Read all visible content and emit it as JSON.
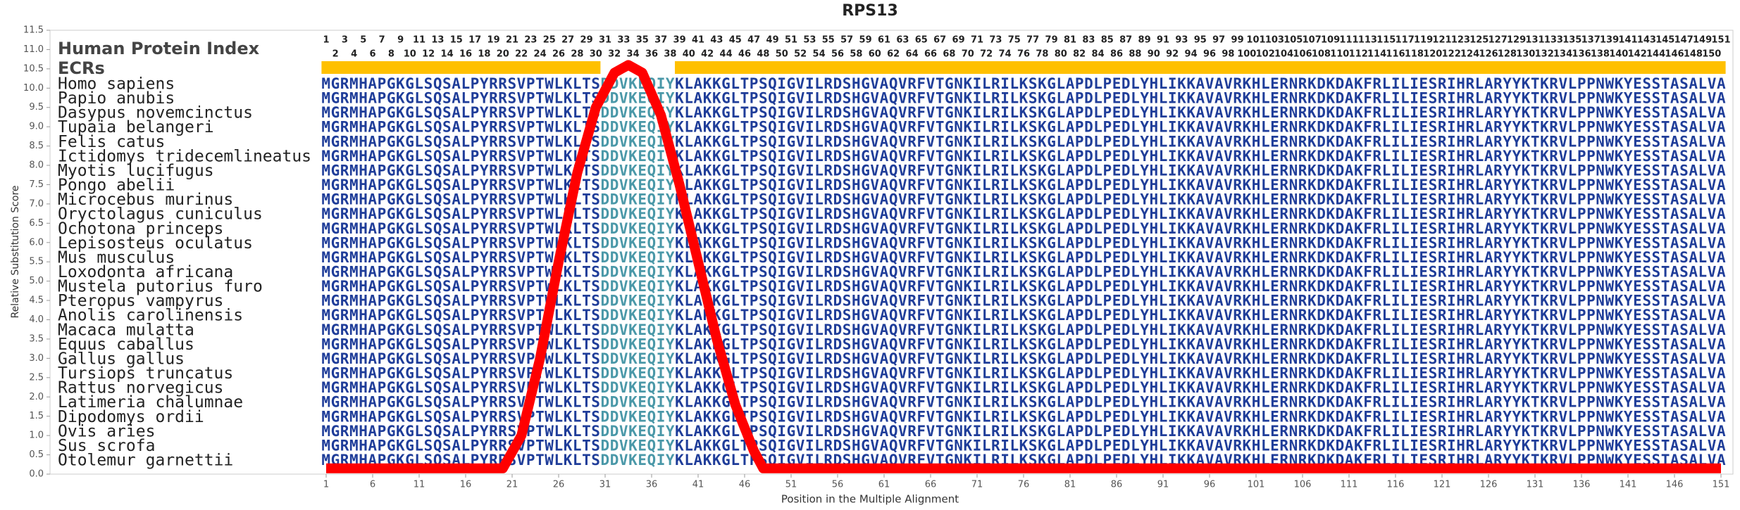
{
  "chart_data": {
    "type": "line",
    "title": "RPS13",
    "x_label": "Position in the Multiple Alignment",
    "y_label": "Relative Substitution Score",
    "color": "#ff0000",
    "x": [
      1,
      20,
      22,
      24,
      26,
      28,
      30,
      32,
      33.5,
      35,
      37,
      39,
      41,
      43,
      45,
      47,
      48,
      151
    ],
    "values": [
      0.15,
      0.15,
      1,
      3,
      5.5,
      7.8,
      9.5,
      10.4,
      10.6,
      10.4,
      9.3,
      7.5,
      5.5,
      3.5,
      1.8,
      0.6,
      0.15,
      0.15
    ],
    "xlim": [
      1,
      151
    ],
    "xticks": [
      1,
      6,
      11,
      16,
      21,
      26,
      31,
      36,
      41,
      46,
      51,
      56,
      61,
      66,
      71,
      76,
      81,
      86,
      91,
      96,
      101,
      106,
      111,
      116,
      121,
      126,
      131,
      136,
      141,
      146,
      151
    ],
    "ylim": [
      0,
      11.5
    ],
    "yticks": [
      {
        "value": 0,
        "label": "0.0"
      },
      {
        "value": 0.5,
        "label": "0.5"
      },
      {
        "value": 1,
        "label": "1.0"
      },
      {
        "value": 1.5,
        "label": "1.5"
      },
      {
        "value": 2,
        "label": "2.0"
      },
      {
        "value": 2.5,
        "label": "2.5"
      },
      {
        "value": 3,
        "label": "3.0"
      },
      {
        "value": 3.5,
        "label": "3.5"
      },
      {
        "value": 4,
        "label": "4.0"
      },
      {
        "value": 4.5,
        "label": "4.5"
      },
      {
        "value": 5,
        "label": "5.0"
      },
      {
        "value": 5.5,
        "label": "5.5"
      },
      {
        "value": 6,
        "label": "6.0"
      },
      {
        "value": 6.5,
        "label": "6.5"
      },
      {
        "value": 7,
        "label": "7.0"
      },
      {
        "value": 7.5,
        "label": "7.5"
      },
      {
        "value": 8,
        "label": "8.0"
      },
      {
        "value": 8.5,
        "label": "8.5"
      },
      {
        "value": 9,
        "label": "9.0"
      },
      {
        "value": 9.5,
        "label": "9.5"
      },
      {
        "value": 10,
        "label": "10.0"
      },
      {
        "value": 10.5,
        "label": "10.5"
      },
      {
        "value": 11,
        "label": "11.0"
      },
      {
        "value": 11.5,
        "label": "11.5"
      }
    ]
  },
  "alignment": {
    "index_label": "Human Protein Index",
    "ecr_label": "ECRs",
    "ecr_color": "#ffc000",
    "ecr_residue_color": "#1f3d99",
    "other_residue_color": "#4a98a8",
    "index": [
      1,
      2,
      3,
      4,
      5,
      6,
      7,
      8,
      9,
      10,
      11,
      12,
      13,
      14,
      15,
      16,
      17,
      18,
      19,
      20,
      21,
      22,
      23,
      24,
      25,
      26,
      27,
      28,
      29,
      30,
      31,
      32,
      33,
      34,
      35,
      36,
      37,
      38,
      39,
      40,
      41,
      42,
      43,
      44,
      45,
      46,
      47,
      48,
      49,
      50,
      51,
      52,
      53,
      54,
      55,
      56,
      57,
      58,
      59,
      60,
      61,
      62,
      63,
      64,
      65,
      66,
      67,
      68,
      69,
      70,
      71,
      72,
      73,
      74,
      75,
      76,
      77,
      78,
      79,
      80,
      81,
      82,
      83,
      84,
      85,
      86,
      87,
      88,
      89,
      90,
      91,
      92,
      93,
      94,
      95,
      96,
      97,
      98,
      99,
      100,
      101,
      102,
      103,
      104,
      105,
      106,
      107,
      108,
      109,
      110,
      111,
      112,
      113,
      114,
      115,
      116,
      117,
      118,
      119,
      120,
      121,
      122,
      123,
      124,
      125,
      126,
      127,
      128,
      129,
      130,
      131,
      132,
      133,
      134,
      135,
      136,
      137,
      138,
      139,
      140,
      141,
      142,
      143,
      144,
      145,
      146,
      147,
      148,
      149,
      150,
      151
    ],
    "ecrs": [
      [
        1,
        30
      ],
      [
        39,
        151
      ]
    ],
    "rows": [
      {
        "species": "Homo sapiens",
        "sequence": "MGRMHAPGKGLSQSALPYRRSVPTWLKLTSDDVKEQIYKLAKKGLTPSQIGVILRDSHGVAQVRFVTGNKILRILKSKGLAPDLPEDLYHLIKKAVAVRKHLERNRKDKDAKFRLILIESRIHRLARYYKTKRVLPPNWKYESSTASALVA"
      },
      {
        "species": "Papio anubis",
        "sequence": "MGRMHAPGKGLSQSALPYRRSVPTWLKLTSDDVKEQIYKLAKKGLTPSQIGVILRDSHGVAQVRFVTGNKILRILKSKGLAPDLPEDLYHLIKKAVAVRKHLERNRKDKDAKFRLILIESRIHRLARYYKTKRVLPPNWKYESSTASALVA"
      },
      {
        "species": "Dasypus novemcinctus",
        "sequence": "MGRMHAPGKGLSQSALPYRRSVPTWLKLTSDDVKEQIYKLAKKGLTPSQIGVILRDSHGVAQVRFVTGNKILRILKSKGLAPDLPEDLYHLIKKAVAVRKHLERNRKDKDAKFRLILIESRIHRLARYYKTKRVLPPNWKYESSTASALVA"
      },
      {
        "species": "Tupaia belangeri",
        "sequence": "MGRMHAPGKGLSQSALPYRRSVPTWLKLTSDDVKEQIYKLAKKGLTPSQIGVILRDSHGVAQVRFVTGNKILRILKSKGLAPDLPEDLYHLIKKAVAVRKHLERNRKDKDAKFRLILIESRIHRLARYYKTKRVLPPNWKYESSTASALVA"
      },
      {
        "species": "Felis catus",
        "sequence": "MGRMHAPGKGLSQSALPYRRSVPTWLKLTSDDVKEQIYKLAKKGLTPSQIGVILRDSHGVAQVRFVTGNKILRILKSKGLAPDLPEDLYHLIKKAVAVRKHLERNRKDKDAKFRLILIESRIHRLARYYKTKRVLPPNWKYESSTASALVA"
      },
      {
        "species": "Ictidomys tridecemlineatus",
        "sequence": "MGRMHAPGKGLSQSALPYRRSVPTWLKLTSDDVKEQIYKLAKKGLTPSQIGVILRDSHGVAQVRFVTGNKILRILKSKGLAPDLPEDLYHLIKKAVAVRKHLERNRKDKDAKFRLILIESRIHRLARYYKTKRVLPPNWKYESSTASALVA"
      },
      {
        "species": "Myotis lucifugus",
        "sequence": "MGRMHAPGKGLSQSALPYRRSVPTWLKLTSDDVKEQIYKLAKKGLTPSQIGVILRDSHGVAQVRFVTGNKILRILKSKGLAPDLPEDLYHLIKKAVAVRKHLERNRKDKDAKFRLILIESRIHRLARYYKTKRVLPPNWKYESSTASALVA"
      },
      {
        "species": "Pongo abelii",
        "sequence": "MGRMHAPGKGLSQSALPYRRSVPTWLKLTSDDVKEQIYKLAKKGLTPSQIGVILRDSHGVAQVRFVTGNKILRILKSKGLAPDLPEDLYHLIKKAVAVRKHLERNRKDKDAKFRLILIESRIHRLARYYKTKRVLPPNWKYESSTASALVA"
      },
      {
        "species": "Microcebus murinus",
        "sequence": "MGRMHAPGKGLSQSALPYRRSVPTWLKLTSDDVKEQIYKLAKKGLTPSQIGVILRDSHGVAQVRFVTGNKILRILKSKGLAPDLPEDLYHLIKKAVAVRKHLERNRKDKDAKFRLILIESRIHRLARYYKTKRVLPPNWKYESSTASALVA"
      },
      {
        "species": "Oryctolagus cuniculus",
        "sequence": "MGRMHAPGKGLSQSALPYRRSVPTWLKLTSDDVKEQIYKLAKKGLTPSQIGVILRDSHGVAQVRFVTGNKILRILKSKGLAPDLPEDLYHLIKKAVAVRKHLERNRKDKDAKFRLILIESRIHRLARYYKTKRVLPPNWKYESSTASALVA"
      },
      {
        "species": "Ochotona princeps",
        "sequence": "MGRMHAPGKGLSQSALPYRRSVPTWLKLTSDDVKEQIYKLAKKGLTPSQIGVILRDSHGVAQVRFVTGNKILRILKSKGLAPDLPEDLYHLIKKAVAVRKHLERNRKDKDAKFRLILIESRIHRLARYYKTKRVLPPNWKYESSTASALVA"
      },
      {
        "species": "Lepisosteus oculatus",
        "sequence": "MGRMHAPGKGLSQSALPYRRSVPTWLKLTSDDVKEQIYKLAKKGLTPSQIGVILRDSHGVAQVRFVTGNKILRILKSKGLAPDLPEDLYHLIKKAVAVRKHLERNRKDKDAKFRLILIESRIHRLARYYKTKRVLPPNWKYESSTASALVA"
      },
      {
        "species": "Mus musculus",
        "sequence": "MGRMHAPGKGLSQSALPYRRSVPTWLKLTSDDVKEQIYKLAKKGLTPSQIGVILRDSHGVAQVRFVTGNKILRILKSKGLAPDLPEDLYHLIKKAVAVRKHLERNRKDKDAKFRLILIESRIHRLARYYKTKRVLPPNWKYESSTASALVA"
      },
      {
        "species": "Loxodonta africana",
        "sequence": "MGRMHAPGKGLSQSALPYRRSVPTWLKLTSDDVKEQIYKLAKKGLTPSQIGVILRDSHGVAQVRFVTGNKILRILKSKGLAPDLPEDLYHLIKKAVAVRKHLERNRKDKDAKFRLILIESRIHRLARYYKTKRVLPPNWKYESSTASALVA"
      },
      {
        "species": "Mustela putorius furo",
        "sequence": "MGRMHAPGKGLSQSALPYRRSVPTWLKLTSDDVKEQIYKLAKKGLTPSQIGVILRDSHGVAQVRFVTGNKILRILKSKGLAPDLPEDLYHLIKKAVAVRKHLERNRKDKDAKFRLILIESRIHRLARYYKTKRVLPPNWKYESSTASALVA"
      },
      {
        "species": "Pteropus vampyrus",
        "sequence": "MGRMHAPGKGLSQSALPYRRSVPTWLKLTSDDVKEQIYKLAKKGLTPSQIGVILRDSHGVAQVRFVTGNKILRILKSKGLAPDLPEDLYHLIKKAVAVRKHLERNRKDKDAKFRLILIESRIHRLARYYKTKRVLPPNWKYESSTASALVA"
      },
      {
        "species": "Anolis carolinensis",
        "sequence": "MGRMHAPGKGLSQSALPYRRSVPTWLKLTSDDVKEQIYKLAKKGLTPSQIGVILRDSHGVAQVRFVTGNKILRILKSKGLAPDLPEDLYHLIKKAVAVRKHLERNRKDKDAKFRLILIESRIHRLARYYKTKRVLPPNWKYESSTASALVA"
      },
      {
        "species": "Macaca mulatta",
        "sequence": "MGRMHAPGKGLSQSALPYRRSVPTWLKLTSDDVKEQIYKLAKKGLTPSQIGVILRDSHGVAQVRFVTGNKILRILKSKGLAPDLPEDLYHLIKKAVAVRKHLERNRKDKDAKFRLILIESRIHRLARYYKTKRVLPPNWKYESSTASALVA"
      },
      {
        "species": "Equus caballus",
        "sequence": "MGRMHAPGKGLSQSALPYRRSVPTWLKLTSDDVKEQIYKLAKKGLTPSQIGVILRDSHGVAQVRFVTGNKILRILKSKGLAPDLPEDLYHLIKKAVAVRKHLERNRKDKDAKFRLILIESRIHRLARYYKTKRVLPPNWKYESSTASALVA"
      },
      {
        "species": "Gallus gallus",
        "sequence": "MGRMHAPGKGLSQSALPYRRSVPTWLKLTSDDVKEQIYKLAKKGLTPSQIGVILRDSHGVAQVRFVTGNKILRILKSKGLAPDLPEDLYHLIKKAVAVRKHLERNRKDKDAKFRLILIESRIHRLARYYKTKRVLPPNWKYESSTASALVA"
      },
      {
        "species": "Tursiops truncatus",
        "sequence": "MGRMHAPGKGLSQSALPYRRSVPTWLKLTSDDVKEQIYKLAKKGLTPSQIGVILRDSHGVAQVRFVTGNKILRILKSKGLAPDLPEDLYHLIKKAVAVRKHLERNRKDKDAKFRLILIESRIHRLARYYKTKRVLPPNWKYESSTASALVA"
      },
      {
        "species": "Rattus norvegicus",
        "sequence": "MGRMHAPGKGLSQSALPYRRSVPTWLKLTSDDVKEQIYKLAKKGLTPSQIGVILRDSHGVAQVRFVTGNKILRILKSKGLAPDLPEDLYHLIKKAVAVRKHLERNRKDKDAKFRLILIESRIHRLARYYKTKRVLPPNWKYESSTASALVA"
      },
      {
        "species": "Latimeria chalumnae",
        "sequence": "MGRMHAPGKGLSQSALPYRRSVPTWLKLTSDDVKEQIYKLAKKGLTPSQIGVILRDSHGVAQVRFVTGNKILRILKSKGLAPDLPEDLYHLIKKAVAVRKHLERNRKDKDAKFRLILIESRIHRLARYYKTKRVLPPNWKYESSTASALVA"
      },
      {
        "species": "Dipodomys ordii",
        "sequence": "MGRMHAPGKGLSQSALPYRRSVPTWLKLTSDDVKEQIYKLAKKGLTPSQIGVILRDSHGVAQVRFVTGNKILRILKSKGLAPDLPEDLYHLIKKAVAVRKHLERNRKDKDAKFRLILIESRIHRLARYYKTKRVLPPNWKYESSTASALVA"
      },
      {
        "species": "Ovis aries",
        "sequence": "MGRMHAPGKGLSQSALPYRRSVPTWLKLTSDDVKEQIYKLAKKGLTPSQIGVILRDSHGVAQVRFVTGNKILRILKSKGLAPDLPEDLYHLIKKAVAVRKHLERNRKDKDAKFRLILIESRIHRLARYYKTKRVLPPNWKYESSTASALVA"
      },
      {
        "species": "Sus scrofa",
        "sequence": "MGRMHAPGKGLSQSALPYRRSVPTWLKLTSDDVKEQIYKLAKKGLTPSQIGVILRDSHGVAQVRFVTGNKILRILKSKGLAPDLPEDLYHLIKKAVAVRKHLERNRKDKDAKFRLILIESRIHRLARYYKTKRVLPPNWKYESSTASALVA"
      },
      {
        "species": "Otolemur garnettii",
        "sequence": "MGRMHAPGKGLSQSALPYRRSVPTWLKLTSDDVKEQIYKLAKKGLTPSQIGVILRDSHGVAQVRFVTGNKILRILKSKGLAPDLPEDLYHLIKKAVAVRKHLERNRKDKDAKFRLILIESRIHRLARYYKTKRVLPPNWKYESSTASALVA"
      }
    ]
  }
}
